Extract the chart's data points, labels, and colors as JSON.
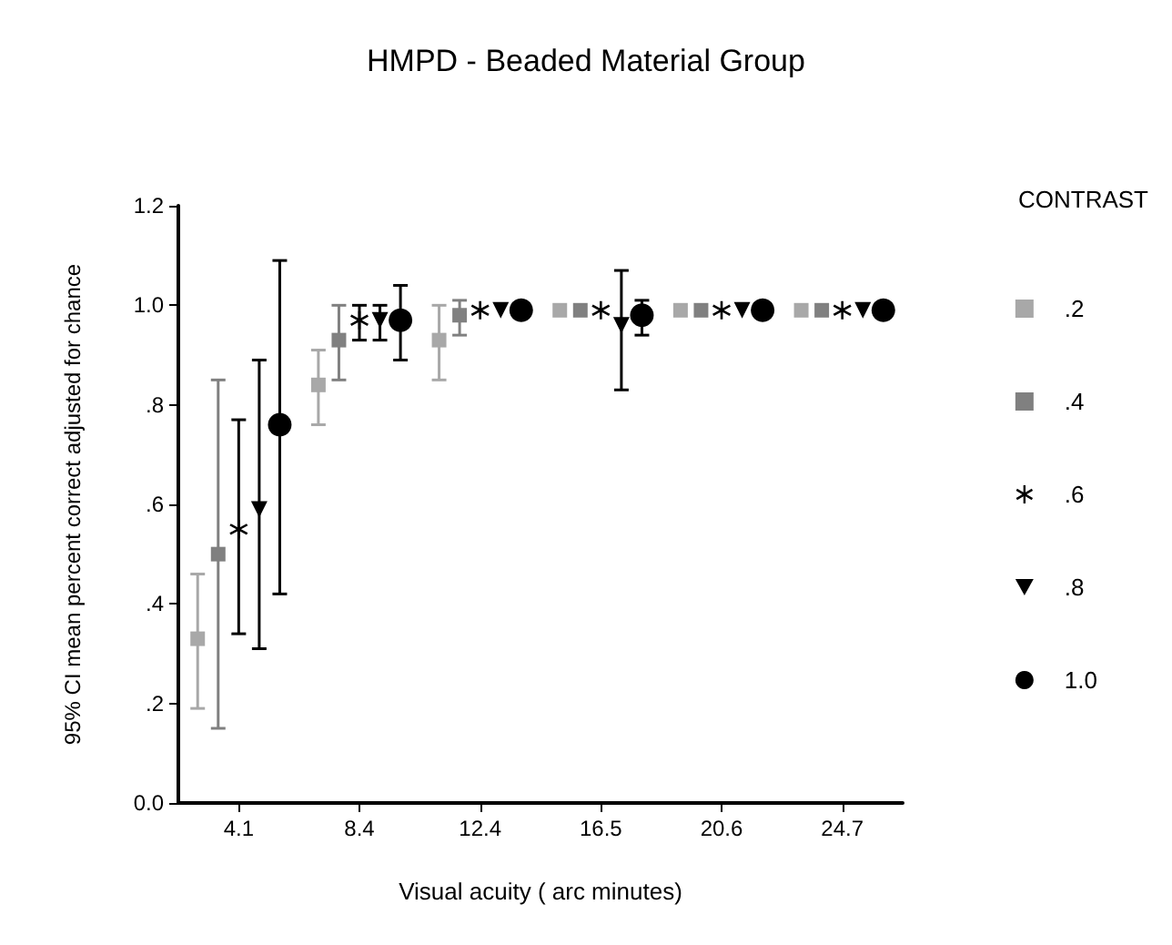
{
  "chart_data": {
    "type": "scatter",
    "title": "HMPD - Beaded Material Group",
    "xlabel": "Visual acuity ( arc minutes)",
    "ylabel": "95% CI mean percent correct adjusted for chance",
    "legend_title": "CONTRAST",
    "legend": "right",
    "grid": false,
    "categories": [
      "4.1",
      "8.4",
      "12.4",
      "16.5",
      "20.6",
      "24.7"
    ],
    "ylim": [
      0,
      1.2
    ],
    "yticks": [
      {
        "value": 0,
        "label": "0.0"
      },
      {
        "value": 0.2,
        "label": ".2"
      },
      {
        "value": 0.4,
        "label": ".4"
      },
      {
        "value": 0.6,
        "label": ".6"
      },
      {
        "value": 0.8,
        "label": ".8"
      },
      {
        "value": 1.0,
        "label": "1.0"
      },
      {
        "value": 1.2,
        "label": "1.2"
      }
    ],
    "series": [
      {
        "name": ".2",
        "color": "#a8a8a8",
        "marker": "square",
        "values": [
          0.33,
          0.84,
          0.93,
          0.99,
          0.99,
          0.99
        ],
        "errors": [
          [
            0.19,
            0.46
          ],
          [
            0.76,
            0.91
          ],
          [
            0.85,
            1.0
          ],
          null,
          null,
          null
        ]
      },
      {
        "name": ".4",
        "color": "#808080",
        "marker": "square",
        "values": [
          0.5,
          0.93,
          0.98,
          0.99,
          0.99,
          0.99
        ],
        "errors": [
          [
            0.15,
            0.85
          ],
          [
            0.85,
            1.0
          ],
          [
            0.94,
            1.01
          ],
          null,
          null,
          null
        ]
      },
      {
        "name": ".6",
        "color": "#000000",
        "marker": "cross",
        "values": [
          0.55,
          0.97,
          0.99,
          0.99,
          0.99,
          0.99
        ],
        "errors": [
          [
            0.34,
            0.77
          ],
          [
            0.93,
            1.0
          ],
          null,
          null,
          null,
          null
        ]
      },
      {
        "name": ".8",
        "color": "#000000",
        "marker": "triangle",
        "values": [
          0.59,
          0.97,
          0.99,
          0.96,
          0.99,
          0.99
        ],
        "errors": [
          [
            0.31,
            0.89
          ],
          [
            0.93,
            1.0
          ],
          null,
          [
            0.83,
            1.07
          ],
          null,
          null
        ]
      },
      {
        "name": "1.0",
        "color": "#000000",
        "marker": "circle",
        "values": [
          0.76,
          0.97,
          0.99,
          0.98,
          0.99,
          0.99
        ],
        "errors": [
          [
            0.42,
            1.09
          ],
          [
            0.89,
            1.04
          ],
          null,
          [
            0.94,
            1.01
          ],
          null,
          null
        ]
      }
    ]
  }
}
